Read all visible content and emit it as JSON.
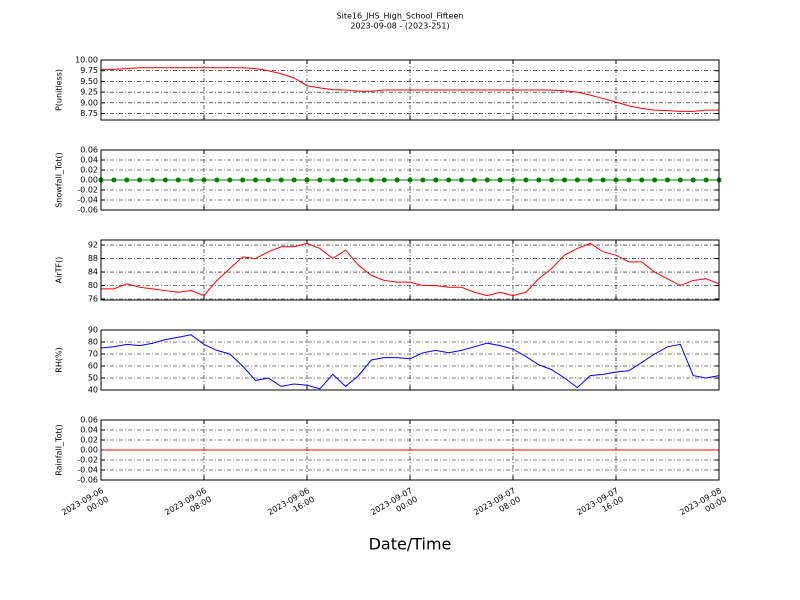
{
  "chart_data": [
    {
      "type": "line",
      "title": "Site16_JHS_High_School_Fifteen",
      "subtitle": "2023-09-08 - (2023-251)",
      "ylabel": "P(unitless)",
      "x": [
        "2023-09-06 00:00",
        "2023-09-06 01:00",
        "2023-09-06 02:00",
        "2023-09-06 03:00",
        "2023-09-06 04:00",
        "2023-09-06 05:00",
        "2023-09-06 06:00",
        "2023-09-06 07:00",
        "2023-09-06 08:00",
        "2023-09-06 09:00",
        "2023-09-06 10:00",
        "2023-09-06 11:00",
        "2023-09-06 12:00",
        "2023-09-06 13:00",
        "2023-09-06 14:00",
        "2023-09-06 15:00",
        "2023-09-06 16:00",
        "2023-09-06 17:00",
        "2023-09-06 18:00",
        "2023-09-06 19:00",
        "2023-09-06 20:00",
        "2023-09-06 21:00",
        "2023-09-06 22:00",
        "2023-09-06 23:00",
        "2023-09-07 00:00",
        "2023-09-07 01:00",
        "2023-09-07 02:00",
        "2023-09-07 03:00",
        "2023-09-07 04:00",
        "2023-09-07 05:00",
        "2023-09-07 06:00",
        "2023-09-07 07:00",
        "2023-09-07 08:00",
        "2023-09-07 09:00",
        "2023-09-07 10:00",
        "2023-09-07 11:00",
        "2023-09-07 12:00",
        "2023-09-07 13:00",
        "2023-09-07 14:00",
        "2023-09-07 15:00",
        "2023-09-07 16:00",
        "2023-09-07 17:00",
        "2023-09-07 18:00",
        "2023-09-07 19:00",
        "2023-09-07 20:00",
        "2023-09-07 21:00",
        "2023-09-07 22:00",
        "2023-09-07 23:00",
        "2023-09-08 00:00"
      ],
      "series": [
        {
          "color": "#ff0000",
          "values": [
            9.78,
            9.78,
            9.8,
            9.82,
            9.82,
            9.82,
            9.82,
            9.82,
            9.82,
            9.82,
            9.82,
            9.82,
            9.8,
            9.75,
            9.68,
            9.58,
            9.4,
            9.35,
            9.31,
            9.3,
            9.27,
            9.27,
            9.3,
            9.3,
            9.3,
            9.3,
            9.3,
            9.3,
            9.3,
            9.3,
            9.3,
            9.3,
            9.3,
            9.3,
            9.3,
            9.3,
            9.28,
            9.25,
            9.18,
            9.1,
            9.02,
            8.93,
            8.87,
            8.83,
            8.82,
            8.8,
            8.8,
            8.83,
            8.83
          ]
        }
      ],
      "xlim": [
        "2023-09-06 00:00",
        "2023-09-08 00:00"
      ],
      "ylim": [
        8.6,
        10.0
      ],
      "yticks": [
        8.75,
        {
          "value": 9.0,
          "label": "9.00"
        },
        9.25,
        {
          "value": 9.5,
          "label": "9.50"
        },
        9.75,
        {
          "value": 10.0,
          "label": "10.00"
        }
      ],
      "grid": true
    },
    {
      "type": "line",
      "ylabel": "Snowfall_Tot()",
      "markers": true,
      "x": [
        "2023-09-06 00:00",
        "2023-09-06 01:00",
        "2023-09-06 02:00",
        "2023-09-06 03:00",
        "2023-09-06 04:00",
        "2023-09-06 05:00",
        "2023-09-06 06:00",
        "2023-09-06 07:00",
        "2023-09-06 08:00",
        "2023-09-06 09:00",
        "2023-09-06 10:00",
        "2023-09-06 11:00",
        "2023-09-06 12:00",
        "2023-09-06 13:00",
        "2023-09-06 14:00",
        "2023-09-06 15:00",
        "2023-09-06 16:00",
        "2023-09-06 17:00",
        "2023-09-06 18:00",
        "2023-09-06 19:00",
        "2023-09-06 20:00",
        "2023-09-06 21:00",
        "2023-09-06 22:00",
        "2023-09-06 23:00",
        "2023-09-07 00:00",
        "2023-09-07 01:00",
        "2023-09-07 02:00",
        "2023-09-07 03:00",
        "2023-09-07 04:00",
        "2023-09-07 05:00",
        "2023-09-07 06:00",
        "2023-09-07 07:00",
        "2023-09-07 08:00",
        "2023-09-07 09:00",
        "2023-09-07 10:00",
        "2023-09-07 11:00",
        "2023-09-07 12:00",
        "2023-09-07 13:00",
        "2023-09-07 14:00",
        "2023-09-07 15:00",
        "2023-09-07 16:00",
        "2023-09-07 17:00",
        "2023-09-07 18:00",
        "2023-09-07 19:00",
        "2023-09-07 20:00",
        "2023-09-07 21:00",
        "2023-09-07 22:00",
        "2023-09-07 23:00",
        "2023-09-08 00:00"
      ],
      "series": [
        {
          "color": "#008000",
          "values": [
            0,
            0,
            0,
            0,
            0,
            0,
            0,
            0,
            0,
            0,
            0,
            0,
            0,
            0,
            0,
            0,
            0,
            0,
            0,
            0,
            0,
            0,
            0,
            0,
            0,
            0,
            0,
            0,
            0,
            0,
            0,
            0,
            0,
            0,
            0,
            0,
            0,
            0,
            0,
            0,
            0,
            0,
            0,
            0,
            0,
            0,
            0,
            0,
            0
          ]
        }
      ],
      "xlim": [
        "2023-09-06 00:00",
        "2023-09-08 00:00"
      ],
      "ylim": [
        -0.06,
        0.06
      ],
      "yticks": [
        -0.06,
        -0.04,
        -0.02,
        {
          "value": 0,
          "label": "0.00"
        },
        0.02,
        0.04,
        0.06
      ],
      "grid": true
    },
    {
      "type": "line",
      "ylabel": "AirTF()",
      "x": [
        "2023-09-06 00:00",
        "2023-09-06 01:00",
        "2023-09-06 02:00",
        "2023-09-06 03:00",
        "2023-09-06 04:00",
        "2023-09-06 05:00",
        "2023-09-06 06:00",
        "2023-09-06 07:00",
        "2023-09-06 08:00",
        "2023-09-06 09:00",
        "2023-09-06 10:00",
        "2023-09-06 11:00",
        "2023-09-06 12:00",
        "2023-09-06 13:00",
        "2023-09-06 14:00",
        "2023-09-06 15:00",
        "2023-09-06 16:00",
        "2023-09-06 17:00",
        "2023-09-06 18:00",
        "2023-09-06 19:00",
        "2023-09-06 20:00",
        "2023-09-06 21:00",
        "2023-09-06 22:00",
        "2023-09-06 23:00",
        "2023-09-07 00:00",
        "2023-09-07 01:00",
        "2023-09-07 02:00",
        "2023-09-07 03:00",
        "2023-09-07 04:00",
        "2023-09-07 05:00",
        "2023-09-07 06:00",
        "2023-09-07 07:00",
        "2023-09-07 08:00",
        "2023-09-07 09:00",
        "2023-09-07 10:00",
        "2023-09-07 11:00",
        "2023-09-07 12:00",
        "2023-09-07 13:00",
        "2023-09-07 14:00",
        "2023-09-07 15:00",
        "2023-09-07 16:00",
        "2023-09-07 17:00",
        "2023-09-07 18:00",
        "2023-09-07 19:00",
        "2023-09-07 20:00",
        "2023-09-07 21:00",
        "2023-09-07 22:00",
        "2023-09-07 23:00",
        "2023-09-08 00:00"
      ],
      "series": [
        {
          "color": "#ff0000",
          "values": [
            79,
            79,
            80.5,
            79.5,
            79,
            78.5,
            78,
            78.5,
            77,
            81.5,
            85,
            88.5,
            88,
            90,
            91.5,
            91.5,
            92.5,
            91,
            88,
            90.5,
            86,
            83,
            81.5,
            81,
            81,
            80,
            80,
            79.5,
            79.5,
            78,
            77,
            78,
            77,
            78,
            82,
            85,
            89,
            91,
            92.5,
            90,
            89,
            87,
            87,
            84,
            82,
            80,
            81.5,
            82,
            80.5
          ]
        }
      ],
      "xlim": [
        "2023-09-06 00:00",
        "2023-09-08 00:00"
      ],
      "ylim": [
        75.7,
        93.5
      ],
      "yticks": [
        76,
        80,
        84,
        88,
        92
      ],
      "grid": true
    },
    {
      "type": "line",
      "ylabel": "RH(%)",
      "x": [
        "2023-09-06 00:00",
        "2023-09-06 01:00",
        "2023-09-06 02:00",
        "2023-09-06 03:00",
        "2023-09-06 04:00",
        "2023-09-06 05:00",
        "2023-09-06 06:00",
        "2023-09-06 07:00",
        "2023-09-06 08:00",
        "2023-09-06 09:00",
        "2023-09-06 10:00",
        "2023-09-06 11:00",
        "2023-09-06 12:00",
        "2023-09-06 13:00",
        "2023-09-06 14:00",
        "2023-09-06 15:00",
        "2023-09-06 16:00",
        "2023-09-06 17:00",
        "2023-09-06 18:00",
        "2023-09-06 19:00",
        "2023-09-06 20:00",
        "2023-09-06 21:00",
        "2023-09-06 22:00",
        "2023-09-06 23:00",
        "2023-09-07 00:00",
        "2023-09-07 01:00",
        "2023-09-07 02:00",
        "2023-09-07 03:00",
        "2023-09-07 04:00",
        "2023-09-07 05:00",
        "2023-09-07 06:00",
        "2023-09-07 07:00",
        "2023-09-07 08:00",
        "2023-09-07 09:00",
        "2023-09-07 10:00",
        "2023-09-07 11:00",
        "2023-09-07 12:00",
        "2023-09-07 13:00",
        "2023-09-07 14:00",
        "2023-09-07 15:00",
        "2023-09-07 16:00",
        "2023-09-07 17:00",
        "2023-09-07 18:00",
        "2023-09-07 19:00",
        "2023-09-07 20:00",
        "2023-09-07 21:00",
        "2023-09-07 22:00",
        "2023-09-07 23:00",
        "2023-09-08 00:00"
      ],
      "series": [
        {
          "color": "#0000ff",
          "values": [
            75,
            76,
            78,
            77,
            79,
            82,
            84,
            86,
            78,
            73,
            70,
            60,
            48,
            50,
            43,
            45,
            44,
            41,
            53,
            43,
            52,
            65,
            67,
            67,
            66,
            71,
            73,
            71,
            73,
            76,
            79,
            77,
            74,
            68,
            61,
            57,
            50,
            42,
            52,
            53,
            55,
            56,
            63,
            70,
            76,
            78,
            52,
            50,
            52
          ]
        }
      ],
      "xlim": [
        "2023-09-06 00:00",
        "2023-09-08 00:00"
      ],
      "ylim": [
        40,
        90
      ],
      "yticks": [
        40,
        50,
        60,
        70,
        80,
        90
      ],
      "grid": true
    },
    {
      "type": "line",
      "ylabel": "Rainfall_Tot()",
      "xlabel": "Date/Time",
      "x": [
        "2023-09-06 00:00",
        "2023-09-06 01:00",
        "2023-09-06 02:00",
        "2023-09-06 03:00",
        "2023-09-06 04:00",
        "2023-09-06 05:00",
        "2023-09-06 06:00",
        "2023-09-06 07:00",
        "2023-09-06 08:00",
        "2023-09-06 09:00",
        "2023-09-06 10:00",
        "2023-09-06 11:00",
        "2023-09-06 12:00",
        "2023-09-06 13:00",
        "2023-09-06 14:00",
        "2023-09-06 15:00",
        "2023-09-06 16:00",
        "2023-09-06 17:00",
        "2023-09-06 18:00",
        "2023-09-06 19:00",
        "2023-09-06 20:00",
        "2023-09-06 21:00",
        "2023-09-06 22:00",
        "2023-09-06 23:00",
        "2023-09-07 00:00",
        "2023-09-07 01:00",
        "2023-09-07 02:00",
        "2023-09-07 03:00",
        "2023-09-07 04:00",
        "2023-09-07 05:00",
        "2023-09-07 06:00",
        "2023-09-07 07:00",
        "2023-09-07 08:00",
        "2023-09-07 09:00",
        "2023-09-07 10:00",
        "2023-09-07 11:00",
        "2023-09-07 12:00",
        "2023-09-07 13:00",
        "2023-09-07 14:00",
        "2023-09-07 15:00",
        "2023-09-07 16:00",
        "2023-09-07 17:00",
        "2023-09-07 18:00",
        "2023-09-07 19:00",
        "2023-09-07 20:00",
        "2023-09-07 21:00",
        "2023-09-07 22:00",
        "2023-09-07 23:00",
        "2023-09-08 00:00"
      ],
      "series": [
        {
          "color": "#ff0000",
          "values": [
            0,
            0,
            0,
            0,
            0,
            0,
            0,
            0,
            0,
            0,
            0,
            0,
            0,
            0,
            0,
            0,
            0,
            0,
            0,
            0,
            0,
            0,
            0,
            0,
            0,
            0,
            0,
            0,
            0,
            0,
            0,
            0,
            0,
            0,
            0,
            0,
            0,
            0,
            0,
            0,
            0,
            0,
            0,
            0,
            0,
            0,
            0,
            0,
            0
          ]
        }
      ],
      "xlim": [
        "2023-09-06 00:00",
        "2023-09-08 00:00"
      ],
      "ylim": [
        -0.06,
        0.06
      ],
      "yticks": [
        -0.06,
        -0.04,
        -0.02,
        {
          "value": 0,
          "label": "0.00"
        },
        0.02,
        0.04,
        0.06
      ],
      "xticks": [
        {
          "value": "2023-09-06 00:00",
          "label": "2023-09-06\n00:00"
        },
        {
          "value": "2023-09-06 08:00",
          "label": "2023-09-06\n08:00"
        },
        {
          "value": "2023-09-06 16:00",
          "label": "2023-09-06\n16:00"
        },
        {
          "value": "2023-09-07 00:00",
          "label": "2023-09-07\n00:00"
        },
        {
          "value": "2023-09-07 08:00",
          "label": "2023-09-07\n08:00"
        },
        {
          "value": "2023-09-07 16:00",
          "label": "2023-09-07\n16:00"
        },
        {
          "value": "2023-09-08 00:00",
          "label": "2023-09-08\n00:00"
        }
      ],
      "grid": true
    }
  ]
}
